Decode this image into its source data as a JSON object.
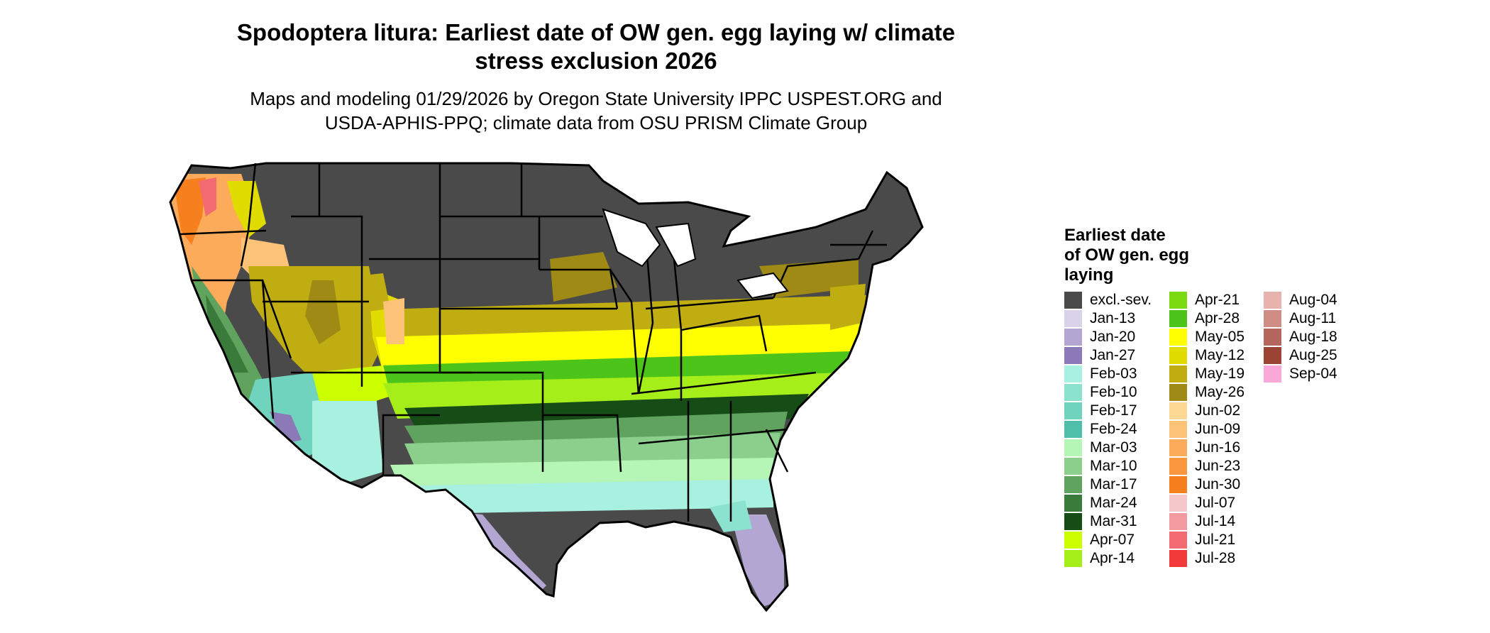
{
  "title": {
    "line1": "Spodoptera litura: Earliest date of OW gen. egg laying w/ climate",
    "line2": "stress exclusion 2026"
  },
  "subtitle": {
    "line1": "Maps and modeling 01/29/2026 by Oregon State University IPPC USPEST.ORG and",
    "line2": "USDA-APHIS-PPQ; climate data from OSU PRISM Climate Group"
  },
  "legend": {
    "title_lines": [
      "Earliest date",
      "of OW gen. egg",
      "laying"
    ],
    "columns": [
      [
        {
          "label": "excl.-sev.",
          "color": "#4a4a4a"
        },
        {
          "label": "Jan-13",
          "color": "#d9d2e9"
        },
        {
          "label": "Jan-20",
          "color": "#b3a6d3"
        },
        {
          "label": "Jan-27",
          "color": "#8c7ab8"
        },
        {
          "label": "Feb-03",
          "color": "#a8f0e0"
        },
        {
          "label": "Feb-10",
          "color": "#8be3cf"
        },
        {
          "label": "Feb-17",
          "color": "#6fd3bd"
        },
        {
          "label": "Feb-24",
          "color": "#4fbfaa"
        },
        {
          "label": "Mar-03",
          "color": "#b5f5b5"
        },
        {
          "label": "Mar-10",
          "color": "#8ccf8c"
        },
        {
          "label": "Mar-17",
          "color": "#5fa35f"
        },
        {
          "label": "Mar-24",
          "color": "#3a7a3a"
        },
        {
          "label": "Mar-31",
          "color": "#164d16"
        },
        {
          "label": "Apr-07",
          "color": "#ccff00"
        },
        {
          "label": "Apr-14",
          "color": "#a6ee1a"
        }
      ],
      [
        {
          "label": "Apr-21",
          "color": "#7ad90f"
        },
        {
          "label": "Apr-28",
          "color": "#4cc419"
        },
        {
          "label": "May-05",
          "color": "#ffff00"
        },
        {
          "label": "May-12",
          "color": "#e0dc00"
        },
        {
          "label": "May-19",
          "color": "#bfad12"
        },
        {
          "label": "May-26",
          "color": "#9e8a15"
        },
        {
          "label": "Jun-02",
          "color": "#fcd894"
        },
        {
          "label": "Jun-09",
          "color": "#fcc277"
        },
        {
          "label": "Jun-16",
          "color": "#fcab5a"
        },
        {
          "label": "Jun-23",
          "color": "#fa963c"
        },
        {
          "label": "Jun-30",
          "color": "#f7801e"
        },
        {
          "label": "Jul-07",
          "color": "#f5c9cc"
        },
        {
          "label": "Jul-14",
          "color": "#f39aa0"
        },
        {
          "label": "Jul-21",
          "color": "#f26a72"
        },
        {
          "label": "Jul-28",
          "color": "#f23a3a"
        }
      ],
      [
        {
          "label": "Aug-04",
          "color": "#e8b2ad"
        },
        {
          "label": "Aug-11",
          "color": "#cf8c84"
        },
        {
          "label": "Aug-18",
          "color": "#b5665c"
        },
        {
          "label": "Aug-25",
          "color": "#9c4433"
        },
        {
          "label": "Sep-04",
          "color": "#f9a8d8"
        }
      ]
    ]
  }
}
